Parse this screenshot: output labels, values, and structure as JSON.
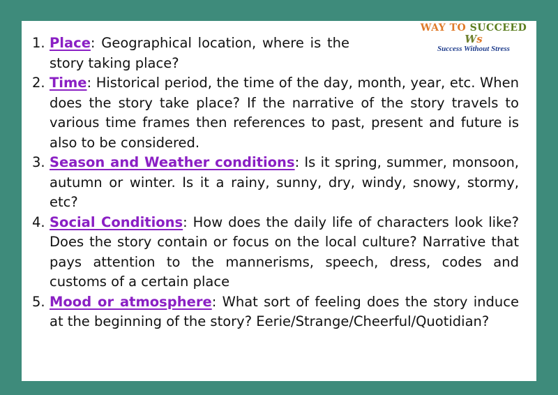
{
  "logo": {
    "title_part1": "WAY TO ",
    "title_part2": "SUCCEED",
    "tagline": "Success Without Stress",
    "colors": {
      "part1": "#e07b2a",
      "part2": "#5a7d1e",
      "tagline": "#1f3d8c"
    }
  },
  "items": [
    {
      "number": "1.",
      "term": "Place",
      "text": ": Geographical location, where is the story taking place?"
    },
    {
      "number": "2.",
      "term": "Time",
      "text": ": Historical period, the time of the day, month, year, etc. When does the story take place? If the narrative of the story travels to various time frames then references to past, present and future is also to be considered."
    },
    {
      "number": "3.",
      "term": "Season and Weather conditions",
      "text": ": Is it spring, summer, monsoon, autumn or winter. Is it a rainy, sunny, dry, windy, snowy, stormy, etc?"
    },
    {
      "number": "4.",
      "term": "Social Conditions",
      "text": ": How does the daily life of characters look like? Does the story contain or focus on the local culture?  Narrative that pays attention to the mannerisms, speech, dress, codes and customs of a certain place"
    },
    {
      "number": "5.",
      "term": "Mood or atmosphere",
      "text": ": What sort of feeling does the story induce at the beginning of the story? Eerie/Strange/Cheerful/Quotidian?"
    }
  ],
  "colors": {
    "background": "#3e8b7b",
    "card": "#ffffff",
    "term": "#8a1fc4",
    "text": "#111111"
  }
}
